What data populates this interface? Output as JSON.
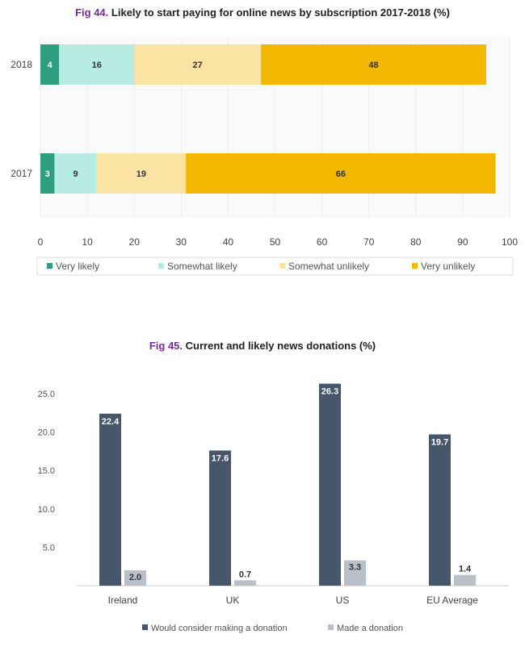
{
  "fig44": {
    "fig_number": "Fig 44.",
    "title_text": "Likely to start paying for online news by subscription 2017-2018 (%)",
    "legend": [
      "Very likely",
      "Somewhat likely",
      "Somewhat unlikely",
      "Very unlikely"
    ]
  },
  "fig45": {
    "fig_number": "Fig 45.",
    "title_text": "Current and likely news donations (%)"
  },
  "colors": {
    "very_likely": "#2e9e7e",
    "somewhat_likely": "#b8ece3",
    "somewhat_unlikely": "#fbe3a4",
    "very_unlikely": "#f5b800",
    "would_consider": "#46566b",
    "made_donation": "#b9c0ca"
  },
  "chart_data": [
    {
      "type": "bar",
      "orientation": "horizontal",
      "stacked": true,
      "title": "Likely to start paying for online news by subscription 2017-2018 (%)",
      "categories": [
        "2018",
        "2017"
      ],
      "series": [
        {
          "name": "Very likely",
          "values": [
            4,
            3
          ]
        },
        {
          "name": "Somewhat likely",
          "values": [
            16,
            9
          ]
        },
        {
          "name": "Somewhat unlikely",
          "values": [
            27,
            19
          ]
        },
        {
          "name": "Very unlikely",
          "values": [
            48,
            66
          ]
        }
      ],
      "xlim": [
        0,
        100
      ],
      "xticks": [
        0,
        10,
        20,
        30,
        40,
        50,
        60,
        70,
        80,
        90,
        100
      ],
      "legend_position": "bottom",
      "grid": true
    },
    {
      "type": "bar",
      "title": "Current and likely news donations (%)",
      "categories": [
        "Ireland",
        "UK",
        "US",
        "EU Average"
      ],
      "series": [
        {
          "name": "Would consider making a donation",
          "values": [
            22.4,
            17.6,
            26.3,
            19.7
          ]
        },
        {
          "name": "Made a donation",
          "values": [
            2.0,
            0.7,
            3.3,
            1.4
          ]
        }
      ],
      "ylim": [
        0,
        25
      ],
      "yticks": [
        "5.0",
        "10.0",
        "15.0",
        "20.0",
        "25.0"
      ],
      "legend_position": "bottom",
      "grid": false
    }
  ]
}
